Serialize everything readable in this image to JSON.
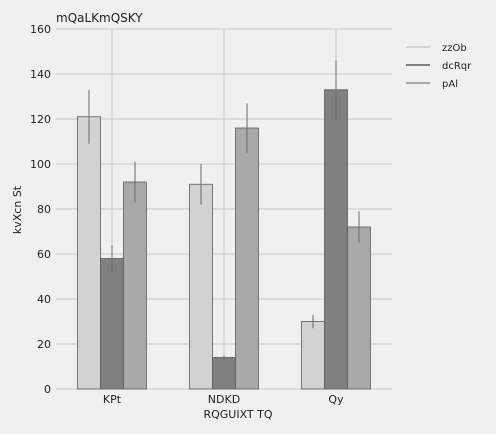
{
  "chart_data": {
    "type": "bar",
    "title": "mQaLKmQSKY",
    "xlabel": "RQGUIXT TQ",
    "ylabel": "kvXcn St",
    "categories": [
      "KPt",
      "NDKD",
      "Qy"
    ],
    "ylim": [
      0,
      160
    ],
    "yticks": [
      0,
      20,
      40,
      60,
      80,
      100,
      120,
      140,
      160
    ],
    "grid": true,
    "legend_position": "top-right",
    "series": [
      {
        "name": "zzOb",
        "color": "#d3d3d3",
        "values": [
          121,
          91,
          30
        ],
        "errors": [
          12,
          9,
          3
        ]
      },
      {
        "name": "dcRqr",
        "color": "#808080",
        "values": [
          58,
          14,
          133
        ],
        "errors": [
          6,
          1,
          13
        ]
      },
      {
        "name": "pAl",
        "color": "#a9a9a9",
        "values": [
          92,
          116,
          72
        ],
        "errors": [
          9,
          11,
          7
        ]
      }
    ]
  }
}
